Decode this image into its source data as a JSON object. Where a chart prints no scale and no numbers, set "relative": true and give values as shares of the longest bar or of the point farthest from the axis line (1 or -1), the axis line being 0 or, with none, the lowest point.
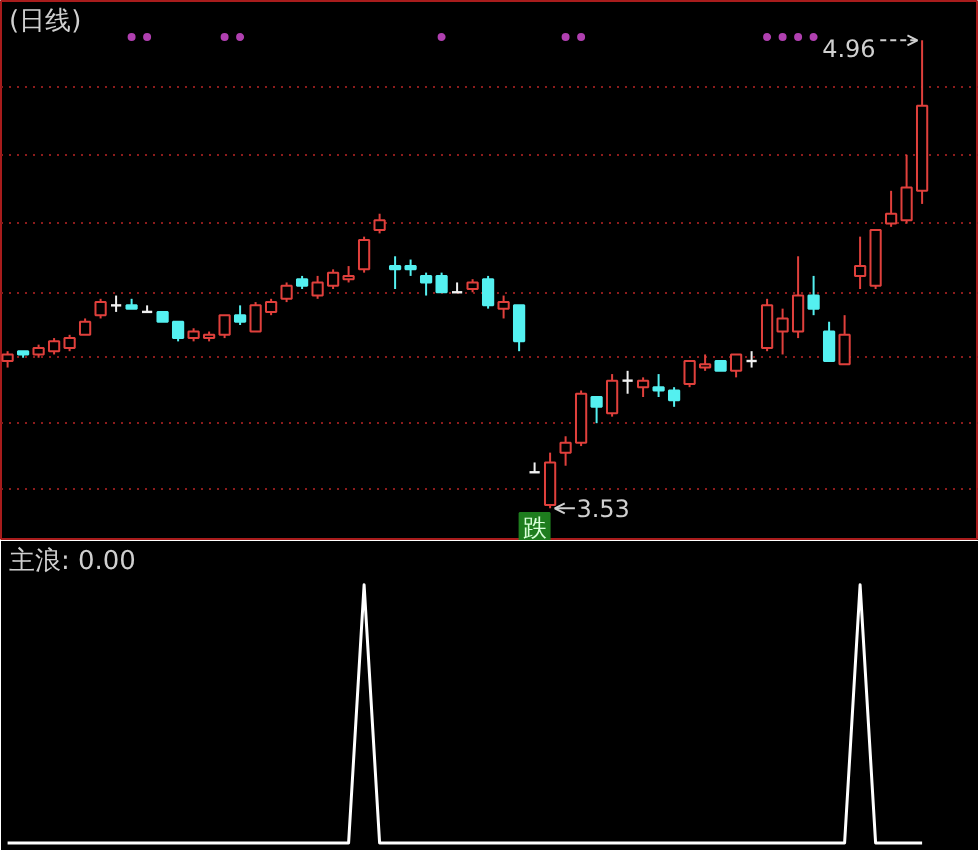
{
  "chart_data": [
    {
      "type": "candlestick",
      "title": "(日线)",
      "categories": [
        null,
        null,
        null,
        null,
        null,
        null,
        null,
        null,
        null,
        null,
        null,
        null,
        null,
        null,
        null,
        null,
        null,
        null,
        null,
        null,
        null,
        null,
        null,
        null,
        null,
        null,
        null,
        null,
        null,
        null,
        null,
        null,
        null,
        null,
        null,
        null,
        null,
        null,
        null,
        null,
        null,
        null,
        null,
        null,
        null,
        null,
        null,
        null,
        null,
        null,
        null,
        null,
        null,
        null,
        null,
        null,
        null,
        null,
        null,
        null
      ],
      "ohlc": [
        [
          3.98,
          4.01,
          3.96,
          4.0
        ],
        [
          4.01,
          4.01,
          3.99,
          4.0
        ],
        [
          4.0,
          4.03,
          3.99,
          4.02
        ],
        [
          4.01,
          4.05,
          4.0,
          4.04
        ],
        [
          4.02,
          4.06,
          4.01,
          4.05
        ],
        [
          4.06,
          4.11,
          4.06,
          4.1
        ],
        [
          4.12,
          4.17,
          4.11,
          4.16
        ],
        [
          4.15,
          4.18,
          4.13,
          4.15
        ],
        [
          4.15,
          4.17,
          4.14,
          4.14
        ],
        [
          4.13,
          4.15,
          4.13,
          4.13
        ],
        [
          4.13,
          4.13,
          4.1,
          4.1
        ],
        [
          4.1,
          4.1,
          4.04,
          4.05
        ],
        [
          4.05,
          4.08,
          4.04,
          4.07
        ],
        [
          4.05,
          4.07,
          4.04,
          4.06
        ],
        [
          4.06,
          4.12,
          4.05,
          4.12
        ],
        [
          4.12,
          4.15,
          4.09,
          4.1
        ],
        [
          4.07,
          4.16,
          4.07,
          4.15
        ],
        [
          4.13,
          4.17,
          4.12,
          4.16
        ],
        [
          4.17,
          4.22,
          4.16,
          4.21
        ],
        [
          4.23,
          4.24,
          4.2,
          4.21
        ],
        [
          4.18,
          4.24,
          4.17,
          4.22
        ],
        [
          4.21,
          4.26,
          4.2,
          4.25
        ],
        [
          4.23,
          4.27,
          4.22,
          4.24
        ],
        [
          4.26,
          4.36,
          4.25,
          4.35
        ],
        [
          4.38,
          4.43,
          4.37,
          4.41
        ],
        [
          4.27,
          4.3,
          4.2,
          4.26
        ],
        [
          4.27,
          4.29,
          4.24,
          4.26
        ],
        [
          4.24,
          4.25,
          4.18,
          4.22
        ],
        [
          4.24,
          4.25,
          4.19,
          4.19
        ],
        [
          4.19,
          4.22,
          4.19,
          4.19
        ],
        [
          4.2,
          4.23,
          4.19,
          4.22
        ],
        [
          4.23,
          4.24,
          4.14,
          4.15
        ],
        [
          4.14,
          4.18,
          4.11,
          4.16
        ],
        [
          4.15,
          4.15,
          4.01,
          4.04
        ],
        [
          3.64,
          3.67,
          3.64,
          3.64
        ],
        [
          3.54,
          3.7,
          3.53,
          3.67
        ],
        [
          3.7,
          3.75,
          3.66,
          3.73
        ],
        [
          3.73,
          3.89,
          3.72,
          3.88
        ],
        [
          3.87,
          3.87,
          3.79,
          3.84
        ],
        [
          3.82,
          3.94,
          3.81,
          3.92
        ],
        [
          3.92,
          3.95,
          3.88,
          3.92
        ],
        [
          3.9,
          3.93,
          3.87,
          3.92
        ],
        [
          3.9,
          3.94,
          3.87,
          3.89
        ],
        [
          3.89,
          3.9,
          3.84,
          3.86
        ],
        [
          3.91,
          3.98,
          3.9,
          3.98
        ],
        [
          3.96,
          4.0,
          3.95,
          3.97
        ],
        [
          3.98,
          3.98,
          3.95,
          3.95
        ],
        [
          3.95,
          4.0,
          3.93,
          4.0
        ],
        [
          3.98,
          4.01,
          3.96,
          3.98
        ],
        [
          4.02,
          4.17,
          4.01,
          4.15
        ],
        [
          4.07,
          4.14,
          4.0,
          4.11
        ],
        [
          4.07,
          4.3,
          4.05,
          4.18
        ],
        [
          4.18,
          4.24,
          4.12,
          4.14
        ],
        [
          4.07,
          4.1,
          3.98,
          3.98
        ],
        [
          3.97,
          4.12,
          3.97,
          4.06
        ],
        [
          4.24,
          4.36,
          4.2,
          4.27
        ],
        [
          4.21,
          4.38,
          4.2,
          4.38
        ],
        [
          4.4,
          4.5,
          4.39,
          4.43
        ],
        [
          4.41,
          4.61,
          4.4,
          4.51
        ],
        [
          4.5,
          4.96,
          4.46,
          4.76
        ]
      ],
      "colors": [
        "#e0403c",
        "#54f0f0",
        "#e0403c",
        "#e0403c",
        "#e0403c",
        "#e0403c",
        "#e0403c",
        "#f0f0f0",
        "#54f0f0",
        "#f0f0f0",
        "#54f0f0",
        "#54f0f0",
        "#e0403c",
        "#e0403c",
        "#e0403c",
        "#54f0f0",
        "#e0403c",
        "#e0403c",
        "#e0403c",
        "#54f0f0",
        "#e0403c",
        "#e0403c",
        "#e0403c",
        "#e0403c",
        "#e0403c",
        "#54f0f0",
        "#54f0f0",
        "#54f0f0",
        "#54f0f0",
        "#f0f0f0",
        "#e0403c",
        "#54f0f0",
        "#e0403c",
        "#54f0f0",
        "#f0f0f0",
        "#e0403c",
        "#e0403c",
        "#e0403c",
        "#54f0f0",
        "#e0403c",
        "#f0f0f0",
        "#e0403c",
        "#54f0f0",
        "#54f0f0",
        "#e0403c",
        "#e0403c",
        "#54f0f0",
        "#e0403c",
        "#f0f0f0",
        "#e0403c",
        "#e0403c",
        "#e0403c",
        "#54f0f0",
        "#54f0f0",
        "#e0403c",
        "#e0403c",
        "#e0403c",
        "#e0403c",
        "#e0403c",
        "#e0403c"
      ],
      "ylim": [
        3.43,
        5.08
      ],
      "yticks": [
        {
          "value": 4.82,
          "label": null
        },
        {
          "value": 4.61,
          "label": null
        },
        {
          "value": 4.4,
          "label": null
        },
        {
          "value": 4.19,
          "label": null
        },
        {
          "value": 3.99,
          "label": null
        },
        {
          "value": 3.79,
          "label": null
        },
        {
          "value": 3.59,
          "label": null
        }
      ],
      "grid": "y",
      "tick_labels": false,
      "annotations": [
        "4.96",
        "3.53"
      ],
      "series": [
        {
          "type": "scatter",
          "color": "#b040b0",
          "marker": "circle",
          "values": [
            null,
            null,
            null,
            null,
            null,
            null,
            null,
            null,
            4.97,
            4.97,
            null,
            null,
            null,
            null,
            4.97,
            4.97,
            null,
            null,
            null,
            null,
            null,
            null,
            null,
            null,
            null,
            null,
            null,
            null,
            4.97,
            null,
            null,
            null,
            null,
            null,
            null,
            null,
            4.97,
            4.97,
            null,
            null,
            null,
            null,
            null,
            null,
            null,
            null,
            null,
            null,
            null,
            4.97,
            4.97,
            4.97,
            4.97,
            null,
            null,
            null,
            null,
            null,
            null,
            null
          ]
        },
        {
          "type": "scatter",
          "color": "#1e7d1e",
          "marker": "square",
          "values": [
            null,
            null,
            null,
            null,
            null,
            null,
            null,
            null,
            null,
            null,
            null,
            null,
            null,
            null,
            null,
            null,
            null,
            null,
            null,
            null,
            null,
            null,
            null,
            null,
            null,
            null,
            null,
            null,
            null,
            null,
            null,
            null,
            null,
            null,
            3.47,
            null,
            null,
            null,
            null,
            null,
            null,
            null,
            null,
            null,
            null,
            null,
            null,
            null,
            null,
            null,
            null,
            null,
            null,
            null,
            null,
            null,
            null,
            null,
            null,
            null
          ],
          "value_labels": [
            null,
            null,
            null,
            null,
            null,
            null,
            null,
            null,
            null,
            null,
            null,
            null,
            null,
            null,
            null,
            null,
            null,
            null,
            null,
            null,
            null,
            null,
            null,
            null,
            null,
            null,
            null,
            null,
            null,
            null,
            null,
            null,
            null,
            null,
            "跌",
            null,
            null,
            null,
            null,
            null,
            null,
            null,
            null,
            null,
            null,
            null,
            null,
            null,
            null,
            null,
            null,
            null,
            null,
            null,
            null,
            null,
            null,
            null,
            null,
            null
          ]
        }
      ]
    },
    {
      "type": "line",
      "title": "主浪: 0.00",
      "relative": true,
      "tick_labels": false,
      "categories": [
        null,
        null,
        null,
        null,
        null,
        null,
        null,
        null,
        null,
        null,
        null,
        null,
        null,
        null,
        null,
        null,
        null,
        null,
        null,
        null,
        null,
        null,
        null,
        null,
        null,
        null,
        null,
        null,
        null,
        null,
        null,
        null,
        null,
        null,
        null,
        null,
        null,
        null,
        null,
        null,
        null,
        null,
        null,
        null,
        null,
        null,
        null,
        null,
        null,
        null,
        null,
        null,
        null,
        null,
        null,
        null,
        null,
        null,
        null,
        null
      ],
      "series": [
        {
          "color": "#ffffff",
          "values": [
            0,
            0,
            0,
            0,
            0,
            0,
            0,
            0,
            0,
            0,
            0,
            0,
            0,
            0,
            0,
            0,
            0,
            0,
            0,
            0,
            0,
            0,
            0,
            1,
            0,
            0,
            0,
            0,
            0,
            0,
            0,
            0,
            0,
            0,
            0,
            0,
            0,
            0,
            0,
            0,
            0,
            0,
            0,
            0,
            0,
            0,
            0,
            0,
            0,
            0,
            0,
            0,
            0,
            0,
            0,
            1,
            0,
            0,
            0,
            0
          ]
        }
      ]
    }
  ]
}
